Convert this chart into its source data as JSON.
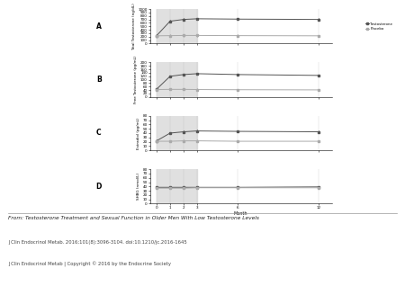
{
  "months": [
    0,
    1,
    2,
    3,
    6,
    12
  ],
  "panel_A": {
    "label": "A",
    "ylabel": "Total Testosterone (ng/dL)",
    "ylim": [
      0,
      1000
    ],
    "yticks": [
      0,
      100,
      200,
      300,
      400,
      500,
      600,
      700,
      800,
      900,
      1000
    ],
    "series": [
      {
        "name": "Testosterone",
        "x": [
          0,
          1,
          2,
          3,
          6,
          12
        ],
        "y": [
          230,
          650,
          700,
          720,
          710,
          700
        ],
        "color": "#555555",
        "marker": "s",
        "linestyle": "-"
      },
      {
        "name": "Placebo",
        "x": [
          0,
          1,
          2,
          3,
          6,
          12
        ],
        "y": [
          225,
          230,
          235,
          235,
          230,
          225
        ],
        "color": "#aaaaaa",
        "marker": "s",
        "linestyle": "-"
      }
    ],
    "shaded_region": [
      0,
      3
    ]
  },
  "panel_B": {
    "label": "B",
    "ylabel": "Free Testosterone (pg/mL)",
    "ylim": [
      0,
      200
    ],
    "yticks": [
      0,
      20,
      40,
      60,
      80,
      100,
      120,
      140,
      160,
      180,
      200
    ],
    "series": [
      {
        "name": "Testosterone",
        "x": [
          0,
          1,
          2,
          3,
          6,
          12
        ],
        "y": [
          45,
          120,
          130,
          135,
          130,
          125
        ],
        "color": "#555555",
        "marker": "s",
        "linestyle": "-"
      },
      {
        "name": "Placebo",
        "x": [
          0,
          1,
          2,
          3,
          6,
          12
        ],
        "y": [
          43,
          44,
          44,
          43,
          42,
          41
        ],
        "color": "#aaaaaa",
        "marker": "s",
        "linestyle": "-"
      }
    ],
    "shaded_region": [
      0,
      3
    ]
  },
  "panel_C": {
    "label": "C",
    "ylabel": "Estradiol (pg/mL)",
    "ylim": [
      0,
      80
    ],
    "yticks": [
      0,
      10,
      20,
      30,
      40,
      50,
      60,
      70,
      80
    ],
    "series": [
      {
        "name": "Testosterone",
        "x": [
          0,
          1,
          2,
          3,
          6,
          12
        ],
        "y": [
          22,
          40,
          43,
          45,
          44,
          43
        ],
        "color": "#555555",
        "marker": "s",
        "linestyle": "-"
      },
      {
        "name": "Placebo",
        "x": [
          0,
          1,
          2,
          3,
          6,
          12
        ],
        "y": [
          21,
          21,
          22,
          22,
          21,
          21
        ],
        "color": "#aaaaaa",
        "marker": "s",
        "linestyle": "-"
      }
    ],
    "shaded_region": [
      0,
      3
    ]
  },
  "panel_D": {
    "label": "D",
    "ylabel": "SHBG (nmol/L)",
    "ylim": [
      0,
      80
    ],
    "yticks": [
      0,
      10,
      20,
      30,
      40,
      50,
      60,
      70,
      80
    ],
    "series": [
      {
        "name": "Testosterone",
        "x": [
          0,
          1,
          2,
          3,
          6,
          12
        ],
        "y": [
          38,
          38,
          38,
          38,
          38,
          39
        ],
        "color": "#555555",
        "marker": "s",
        "linestyle": "-"
      },
      {
        "name": "Placebo",
        "x": [
          0,
          1,
          2,
          3,
          6,
          12
        ],
        "y": [
          36,
          36,
          36,
          37,
          37,
          37
        ],
        "color": "#aaaaaa",
        "marker": "s",
        "linestyle": "-"
      }
    ],
    "shaded_region": [
      0,
      3
    ]
  },
  "xlabel": "Month",
  "xticks": [
    0,
    1,
    2,
    3,
    6,
    12
  ],
  "shaded_color": "#e0e0e0",
  "bg_color": "#ffffff",
  "caption_line1": "From: Testosterone Treatment and Sexual Function in Older Men With Low Testosterone Levels",
  "caption_line2": "J Clin Endocrinol Metab. 2016;101(8):3096-3104. doi:10.1210/jc.2016-1645",
  "caption_line3": "J Clin Endocrinol Metab | Copyright © 2016 by the Endocrine Society",
  "legend_labels": [
    "Testosterone",
    "Placebo"
  ],
  "legend_colors": [
    "#555555",
    "#aaaaaa"
  ]
}
